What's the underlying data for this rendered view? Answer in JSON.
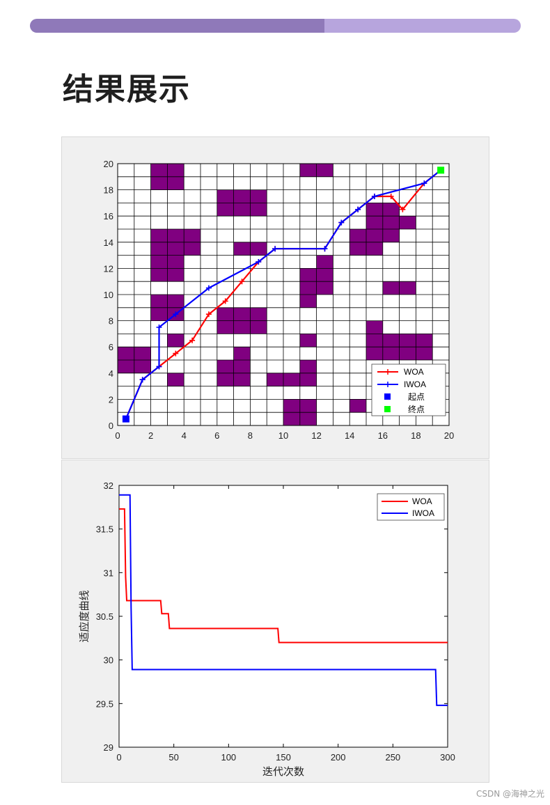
{
  "progress": {
    "fraction": 0.6,
    "fill_color": "#8f79b9",
    "track_color": "#b7a5dd"
  },
  "title": "结果展示",
  "watermark": "CSDN @海神之光",
  "chart_data": [
    {
      "type": "line",
      "grid": true,
      "xlim": [
        0,
        20
      ],
      "ylim": [
        0,
        20
      ],
      "xticks": [
        "0",
        "2",
        "4",
        "6",
        "8",
        "10",
        "12",
        "14",
        "16",
        "18",
        "20"
      ],
      "yticks": [
        "0",
        "2",
        "4",
        "6",
        "8",
        "10",
        "12",
        "14",
        "16",
        "18",
        "20"
      ],
      "obstacle_color": "#800080",
      "obstacles": [
        [
          2,
          19
        ],
        [
          3,
          19
        ],
        [
          2,
          18
        ],
        [
          3,
          18
        ],
        [
          11,
          19
        ],
        [
          12,
          19
        ],
        [
          6,
          17
        ],
        [
          7,
          17
        ],
        [
          8,
          17
        ],
        [
          6,
          16
        ],
        [
          7,
          16
        ],
        [
          8,
          16
        ],
        [
          2,
          14
        ],
        [
          3,
          14
        ],
        [
          2,
          13
        ],
        [
          3,
          13
        ],
        [
          2,
          12
        ],
        [
          3,
          12
        ],
        [
          2,
          11
        ],
        [
          3,
          11
        ],
        [
          4,
          14
        ],
        [
          4,
          13
        ],
        [
          7,
          13
        ],
        [
          8,
          13
        ],
        [
          14,
          14
        ],
        [
          15,
          14
        ],
        [
          14,
          13
        ],
        [
          15,
          13
        ],
        [
          15,
          16
        ],
        [
          16,
          16
        ],
        [
          15,
          15
        ],
        [
          16,
          15
        ],
        [
          17,
          15
        ],
        [
          16,
          14
        ],
        [
          11,
          11
        ],
        [
          12,
          11
        ],
        [
          12,
          12
        ],
        [
          11,
          10
        ],
        [
          12,
          10
        ],
        [
          11,
          9
        ],
        [
          16,
          10
        ],
        [
          17,
          10
        ],
        [
          2,
          9
        ],
        [
          3,
          9
        ],
        [
          2,
          8
        ],
        [
          3,
          8
        ],
        [
          6,
          8
        ],
        [
          7,
          8
        ],
        [
          8,
          8
        ],
        [
          6,
          7
        ],
        [
          7,
          7
        ],
        [
          8,
          7
        ],
        [
          3,
          6
        ],
        [
          11,
          6
        ],
        [
          7,
          5
        ],
        [
          0,
          5
        ],
        [
          1,
          5
        ],
        [
          0,
          4
        ],
        [
          1,
          4
        ],
        [
          15,
          7
        ],
        [
          15,
          6
        ],
        [
          16,
          6
        ],
        [
          17,
          6
        ],
        [
          18,
          6
        ],
        [
          15,
          5
        ],
        [
          16,
          5
        ],
        [
          17,
          5
        ],
        [
          18,
          5
        ],
        [
          6,
          4
        ],
        [
          7,
          4
        ],
        [
          6,
          3
        ],
        [
          7,
          3
        ],
        [
          3,
          3
        ],
        [
          11,
          4
        ],
        [
          9,
          3
        ],
        [
          10,
          3
        ],
        [
          11,
          3
        ],
        [
          10,
          1
        ],
        [
          11,
          1
        ],
        [
          10,
          0
        ],
        [
          11,
          0
        ],
        [
          14,
          1
        ]
      ],
      "series": [
        {
          "name": "WOA",
          "color": "#ff0000",
          "x": [
            0.5,
            1.5,
            2.5,
            3.5,
            4.5,
            5.5,
            6.5,
            7.5,
            8.5,
            9.5,
            12.5,
            13.5,
            14.5,
            15.5,
            16.5,
            17.2,
            18.5,
            19.5
          ],
          "y": [
            0.5,
            3.5,
            4.5,
            5.5,
            6.5,
            8.5,
            9.5,
            11,
            12.5,
            13.5,
            13.5,
            15.5,
            16.5,
            17.5,
            17.5,
            16.5,
            18.5,
            19.5
          ]
        },
        {
          "name": "IWOA",
          "color": "#0000ff",
          "x": [
            0.5,
            1.5,
            2.5,
            2.5,
            3.5,
            5.5,
            8.5,
            9.5,
            12.5,
            13.5,
            14.5,
            15.5,
            18.5,
            19.5
          ],
          "y": [
            0.5,
            3.5,
            4.5,
            7.5,
            8.5,
            10.5,
            12.5,
            13.5,
            13.5,
            15.5,
            16.5,
            17.5,
            18.5,
            19.5
          ]
        }
      ],
      "markers": [
        {
          "name": "起点",
          "x": 0.5,
          "y": 0.5,
          "color": "#0000ff"
        },
        {
          "name": "终点",
          "x": 19.5,
          "y": 19.5,
          "color": "#00ff00"
        }
      ],
      "legend": {
        "location": "lower-right",
        "entries": [
          "WOA",
          "IWOA",
          "起点",
          "终点"
        ]
      }
    },
    {
      "type": "line",
      "xlim": [
        0,
        300
      ],
      "ylim": [
        29,
        32
      ],
      "xticks": [
        "0",
        "50",
        "100",
        "150",
        "200",
        "250",
        "300"
      ],
      "yticks": [
        "29",
        "29.5",
        "30",
        "30.5",
        "31",
        "31.5",
        "32"
      ],
      "ylabel": "适应度曲线",
      "xlabel": "迭代次数",
      "series": [
        {
          "name": "WOA",
          "color": "#ff0000",
          "x": [
            0,
            5,
            6,
            7,
            38,
            39,
            45,
            46,
            145,
            146,
            300
          ],
          "y": [
            31.73,
            31.73,
            30.95,
            30.68,
            30.68,
            30.53,
            30.53,
            30.36,
            30.36,
            30.2,
            30.2
          ]
        },
        {
          "name": "IWOA",
          "color": "#0000ff",
          "x": [
            0,
            10,
            11,
            12,
            289,
            290,
            300
          ],
          "y": [
            31.89,
            31.89,
            30.6,
            29.89,
            29.89,
            29.48,
            29.48
          ]
        }
      ],
      "legend": {
        "location": "top-right",
        "entries": [
          "WOA",
          "IWOA"
        ]
      }
    }
  ]
}
